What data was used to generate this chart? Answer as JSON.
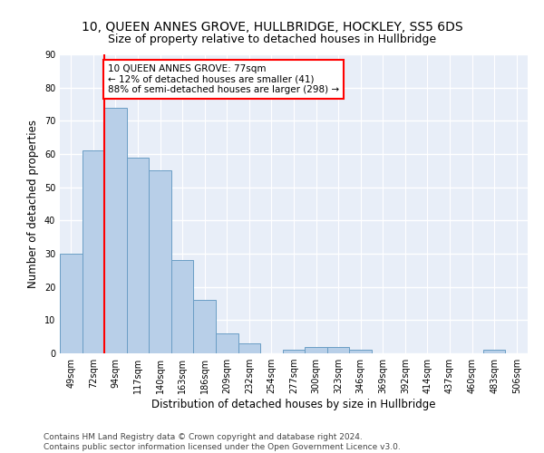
{
  "title": "10, QUEEN ANNES GROVE, HULLBRIDGE, HOCKLEY, SS5 6DS",
  "subtitle": "Size of property relative to detached houses in Hullbridge",
  "xlabel": "Distribution of detached houses by size in Hullbridge",
  "ylabel": "Number of detached properties",
  "bar_values": [
    30,
    61,
    74,
    59,
    55,
    28,
    16,
    6,
    3,
    0,
    1,
    2,
    2,
    1,
    0,
    0,
    0,
    0,
    0,
    1,
    0
  ],
  "bin_labels": [
    "49sqm",
    "72sqm",
    "94sqm",
    "117sqm",
    "140sqm",
    "163sqm",
    "186sqm",
    "209sqm",
    "232sqm",
    "254sqm",
    "277sqm",
    "300sqm",
    "323sqm",
    "346sqm",
    "369sqm",
    "392sqm",
    "414sqm",
    "437sqm",
    "460sqm",
    "483sqm",
    "506sqm"
  ],
  "bar_color": "#b8cfe8",
  "bar_edge_color": "#6a9ec5",
  "vline_x_index": 1,
  "annotation_text": "10 QUEEN ANNES GROVE: 77sqm\n← 12% of detached houses are smaller (41)\n88% of semi-detached houses are larger (298) →",
  "annotation_box_color": "white",
  "annotation_box_edge_color": "red",
  "ylim": [
    0,
    90
  ],
  "yticks": [
    0,
    10,
    20,
    30,
    40,
    50,
    60,
    70,
    80,
    90
  ],
  "bg_color": "#e8eef8",
  "grid_color": "white",
  "footer_line1": "Contains HM Land Registry data © Crown copyright and database right 2024.",
  "footer_line2": "Contains public sector information licensed under the Open Government Licence v3.0.",
  "title_fontsize": 10,
  "subtitle_fontsize": 9,
  "tick_fontsize": 7,
  "ylabel_fontsize": 8.5,
  "xlabel_fontsize": 8.5,
  "annotation_fontsize": 7.5,
  "footer_fontsize": 6.5
}
